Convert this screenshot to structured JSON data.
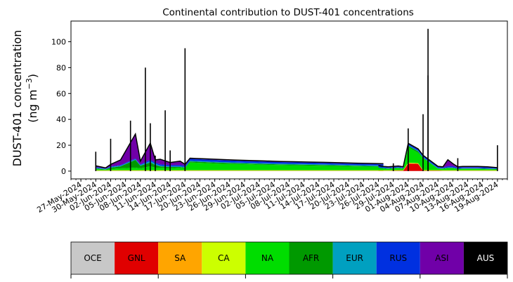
{
  "chart_data": {
    "type": "area",
    "title": "Continental contribution to DUST-401 concentrations",
    "ylabel_line1": "DUST-401 concentration",
    "ylabel_line2": "(ng m",
    "ylabel_unit_exponent": "−3",
    "ylabel_line2_close": ")",
    "xlabel": "",
    "ylim": [
      -6,
      116
    ],
    "y_ticks": [
      0,
      20,
      40,
      60,
      80,
      100
    ],
    "x_range": [
      "2024-05-25",
      "2024-08-21"
    ],
    "x_ticks": [
      "27-May-2024",
      "30-May-2024",
      "02-Jun-2024",
      "05-Jun-2024",
      "08-Jun-2024",
      "11-Jun-2024",
      "14-Jun-2024",
      "17-Jun-2024",
      "20-Jun-2024",
      "23-Jun-2024",
      "26-Jun-2024",
      "29-Jun-2024",
      "02-Jul-2024",
      "05-Jul-2024",
      "08-Jul-2024",
      "11-Jul-2024",
      "14-Jul-2024",
      "17-Jul-2024",
      "20-Jul-2024",
      "23-Jul-2024",
      "26-Jul-2024",
      "29-Jul-2024",
      "01-Aug-2024",
      "04-Aug-2024",
      "07-Aug-2024",
      "10-Aug-2024",
      "13-Aug-2024",
      "16-Aug-2024",
      "19-Aug-2024"
    ],
    "grid": false,
    "legend_placement": "bottom",
    "series": [
      {
        "name": "OCE",
        "color": "#c8c8c8",
        "values": [
          0.1,
          0.1,
          0.1,
          0.1,
          0.1,
          0.1,
          0.1,
          0.1,
          0.1,
          0.1,
          0.1,
          0.1,
          0.1,
          0.1,
          0.1,
          0.1,
          0.1,
          0.1,
          0.1,
          0.1,
          0.1,
          0.1,
          0.1,
          0.1,
          0.1,
          0.1,
          0.1,
          0.1,
          0.1,
          0.1,
          0.1,
          0.1,
          0.1,
          0.1,
          0.1,
          0.1,
          0.1,
          0.1,
          0.1,
          0.1,
          0.1,
          0.1,
          0.1,
          0.1,
          0.1,
          0.1
        ]
      },
      {
        "name": "GNL",
        "color": "#e00000",
        "values": [
          0.1,
          0.1,
          0.1,
          0.1,
          0.1,
          0.1,
          0.1,
          0.1,
          0.1,
          0.1,
          0.1,
          0.1,
          0.1,
          0.1,
          0.1,
          0.1,
          0.1,
          0.1,
          0.1,
          0.1,
          0.1,
          0.1,
          0.1,
          0.1,
          0.1,
          0.1,
          0.1,
          0.1,
          0.1,
          0.1,
          0.1,
          0.1,
          0.2,
          0.2,
          5.8,
          5.5,
          0.2,
          0.2,
          0.1,
          0.1,
          0.1,
          0.1,
          0.1,
          0.1,
          0.1,
          0.1
        ]
      },
      {
        "name": "SA",
        "color": "#ffa500",
        "values": [
          0.2,
          0.2,
          0.2,
          0.2,
          0.2,
          0.2,
          0.2,
          0.2,
          0.2,
          0.2,
          0.2,
          0.2,
          0.2,
          0.2,
          0.2,
          0.2,
          0.2,
          0.2,
          0.2,
          0.2,
          0.2,
          0.2,
          0.2,
          0.2,
          0.2,
          0.2,
          0.2,
          0.2,
          0.2,
          0.2,
          0.2,
          0.2,
          0.2,
          0.2,
          0.3,
          0.3,
          0.2,
          0.2,
          0.2,
          0.2,
          0.2,
          0.2,
          0.2,
          0.2,
          0.2,
          0.2
        ]
      },
      {
        "name": "CA",
        "color": "#ccff00",
        "values": [
          0.2,
          0.2,
          0.3,
          0.3,
          0.3,
          0.3,
          0.3,
          0.3,
          0.3,
          0.3,
          0.3,
          0.3,
          0.3,
          0.3,
          0.3,
          0.3,
          0.3,
          0.3,
          0.3,
          0.3,
          0.3,
          0.3,
          0.3,
          0.3,
          0.3,
          0.3,
          0.3,
          0.3,
          0.3,
          0.3,
          0.3,
          0.3,
          0.3,
          0.3,
          0.3,
          0.3,
          0.3,
          0.3,
          0.3,
          0.3,
          0.3,
          0.3,
          0.3,
          0.3,
          0.3,
          0.3
        ]
      },
      {
        "name": "NA",
        "color": "#00dd00",
        "values": [
          1.0,
          0.5,
          1.0,
          1.5,
          2.0,
          1.5,
          3.0,
          2.0,
          2.0,
          1.5,
          2.0,
          1.5,
          6.0,
          5.5,
          5.0,
          4.8,
          4.5,
          4.2,
          4.0,
          3.8,
          3.6,
          3.4,
          3.2,
          3.0,
          2.8,
          2.6,
          2.5,
          2.3,
          2.1,
          1.5,
          1.2,
          1.0,
          1.5,
          1.0,
          12.0,
          8.0,
          9.0,
          1.0,
          1.0,
          1.5,
          1.5,
          0.8,
          1.0,
          1.0,
          0.8,
          0.6
        ]
      },
      {
        "name": "AFR",
        "color": "#009900",
        "values": [
          0.5,
          0.3,
          1.0,
          1.5,
          6.0,
          2.0,
          3.0,
          2.0,
          1.0,
          1.0,
          0.5,
          0.5,
          0.8,
          0.8,
          0.8,
          0.7,
          0.7,
          0.7,
          0.6,
          0.6,
          0.6,
          0.6,
          0.6,
          0.5,
          0.5,
          0.5,
          0.5,
          0.4,
          0.4,
          0.4,
          0.3,
          0.3,
          0.3,
          0.3,
          1.0,
          1.0,
          0.5,
          0.3,
          0.3,
          0.3,
          0.3,
          0.3,
          0.3,
          0.3,
          0.3,
          0.3
        ]
      },
      {
        "name": "EUR",
        "color": "#00a0c0",
        "values": [
          0.5,
          0.3,
          0.5,
          0.5,
          0.5,
          0.5,
          1.0,
          1.0,
          0.5,
          0.5,
          0.5,
          0.5,
          0.5,
          0.5,
          0.5,
          0.5,
          0.5,
          0.5,
          0.5,
          0.5,
          0.5,
          0.5,
          0.5,
          0.5,
          0.5,
          0.5,
          0.5,
          0.5,
          0.5,
          0.5,
          0.3,
          0.3,
          0.3,
          0.3,
          0.5,
          0.5,
          0.5,
          0.3,
          0.3,
          0.3,
          0.3,
          0.3,
          0.3,
          0.3,
          0.3,
          0.3
        ]
      },
      {
        "name": "RUS",
        "color": "#0030e0",
        "values": [
          0.5,
          0.3,
          0.5,
          0.5,
          0.5,
          0.5,
          1.0,
          1.0,
          1.0,
          1.0,
          1.0,
          1.0,
          1.5,
          1.5,
          1.5,
          1.4,
          1.3,
          1.3,
          1.2,
          1.2,
          1.1,
          1.1,
          1.0,
          1.0,
          1.0,
          0.9,
          0.9,
          0.9,
          0.8,
          0.8,
          0.8,
          0.5,
          0.6,
          0.5,
          1.0,
          1.0,
          1.0,
          0.8,
          0.5,
          1.0,
          1.0,
          0.8,
          0.8,
          0.8,
          0.8,
          0.5
        ]
      },
      {
        "name": "ASI",
        "color": "#7000a8",
        "values": [
          1.0,
          0.5,
          1.5,
          4.0,
          19.0,
          2.5,
          13.0,
          2.0,
          4.0,
          2.0,
          3.0,
          1.0,
          0.5,
          0.5,
          0.5,
          0.5,
          0.5,
          0.5,
          0.5,
          0.5,
          0.5,
          0.5,
          0.5,
          0.5,
          0.5,
          0.5,
          0.4,
          0.4,
          0.4,
          0.4,
          0.3,
          0.5,
          0.5,
          0.5,
          0.5,
          0.5,
          0.5,
          0.5,
          0.5,
          5.0,
          2.0,
          0.5,
          0.5,
          0.5,
          0.5,
          0.3
        ]
      },
      {
        "name": "AUS",
        "color": "#000000",
        "values": [
          0,
          0,
          0,
          0,
          0,
          0,
          0,
          0,
          0,
          0,
          0,
          0,
          0,
          0,
          0,
          0,
          0,
          0,
          0,
          0,
          0,
          0,
          0,
          0,
          0,
          0,
          0,
          0,
          0,
          0,
          0,
          0,
          0,
          0,
          0,
          0,
          0,
          0,
          0,
          0,
          0,
          0,
          0,
          0,
          0,
          0
        ]
      }
    ],
    "x_dates": [
      "2024-05-30",
      "2024-06-01",
      "2024-06-02",
      "2024-06-04",
      "2024-06-07",
      "2024-06-08",
      "2024-06-10",
      "2024-06-11",
      "2024-06-12",
      "2024-06-14",
      "2024-06-16",
      "2024-06-17",
      "2024-06-18",
      "2024-06-21",
      "2024-06-24",
      "2024-06-27",
      "2024-06-30",
      "2024-07-03",
      "2024-07-06",
      "2024-07-09",
      "2024-07-12",
      "2024-07-15",
      "2024-07-18",
      "2024-07-21",
      "2024-07-24",
      "2024-07-27",
      "2024-07-30",
      "2024-08-02",
      "2024-08-05",
      "2024-07-26",
      "2024-07-27",
      "2024-07-28",
      "2024-07-30",
      "2024-07-31",
      "2024-08-01",
      "2024-08-03",
      "2024-08-04",
      "2024-08-07",
      "2024-08-08",
      "2024-08-09",
      "2024-08-10",
      "2024-08-11",
      "2024-08-12",
      "2024-08-15",
      "2024-08-17",
      "2024-08-19"
    ],
    "spikes": [
      {
        "x": "2024-05-30",
        "y": 15
      },
      {
        "x": "2024-06-02",
        "y": 25
      },
      {
        "x": "2024-06-06",
        "y": 39
      },
      {
        "x": "2024-06-09",
        "y": 80
      },
      {
        "x": "2024-06-10",
        "y": 37
      },
      {
        "x": "2024-06-11",
        "y": 12
      },
      {
        "x": "2024-06-13",
        "y": 47
      },
      {
        "x": "2024-06-14",
        "y": 16
      },
      {
        "x": "2024-06-17",
        "y": 95
      },
      {
        "x": "2024-07-29",
        "y": 6
      },
      {
        "x": "2024-08-01",
        "y": 33
      },
      {
        "x": "2024-08-04",
        "y": 44
      },
      {
        "x": "2024-08-05",
        "y": 110
      },
      {
        "x": "2024-08-05",
        "y": 74
      },
      {
        "x": "2024-08-11",
        "y": 10
      },
      {
        "x": "2024-08-19",
        "y": 20
      }
    ]
  }
}
